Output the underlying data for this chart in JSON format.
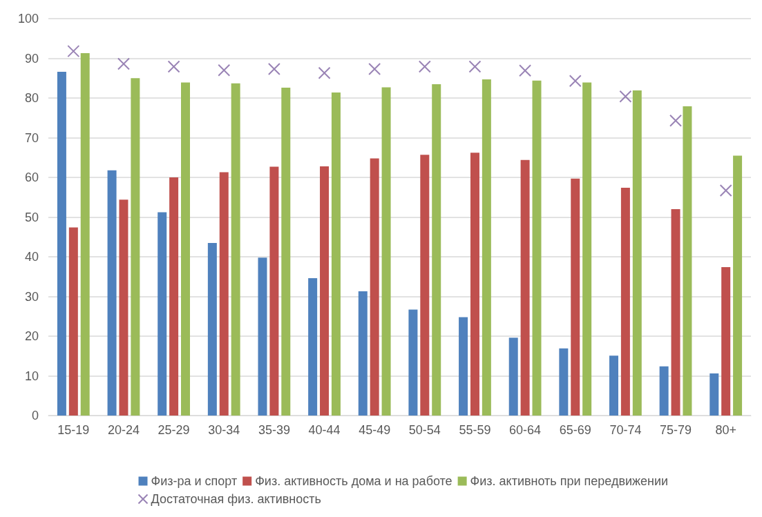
{
  "chart_data": {
    "type": "bar",
    "categories": [
      "15-19",
      "20-24",
      "25-29",
      "30-34",
      "35-39",
      "40-44",
      "45-49",
      "50-54",
      "55-59",
      "60-64",
      "65-69",
      "70-74",
      "75-79",
      "80+"
    ],
    "series": [
      {
        "name": "Физ-ра и спорт",
        "color": "#4f81bd",
        "values": [
          86.6,
          61.8,
          51.2,
          43.5,
          39.8,
          34.6,
          31.3,
          26.7,
          24.8,
          19.6,
          16.9,
          15.1,
          12.4,
          10.6
        ]
      },
      {
        "name": "Физ. активность дома и на работе",
        "color": "#c0504d",
        "values": [
          47.4,
          54.4,
          60.0,
          61.3,
          62.7,
          62.8,
          64.8,
          65.7,
          66.2,
          64.4,
          59.7,
          57.4,
          52.0,
          37.4
        ]
      },
      {
        "name": "Физ. активноть при передвижении",
        "color": "#9bbb59",
        "values": [
          91.3,
          85.0,
          83.9,
          83.7,
          82.6,
          81.4,
          82.7,
          83.5,
          84.7,
          84.4,
          83.9,
          81.9,
          77.9,
          65.5
        ]
      },
      {
        "name": "Достаточная физ. активность",
        "color": "#8064a2",
        "type": "scatter",
        "marker": "cross",
        "values": [
          91.8,
          88.6,
          87.9,
          87.0,
          87.3,
          86.3,
          87.3,
          87.9,
          87.9,
          86.9,
          84.3,
          80.4,
          74.3,
          56.7
        ]
      }
    ],
    "ylim": [
      0,
      100
    ],
    "yticks": [
      0,
      10,
      20,
      30,
      40,
      50,
      60,
      70,
      80,
      90,
      100
    ],
    "grid": "y",
    "legend": "bottom"
  }
}
